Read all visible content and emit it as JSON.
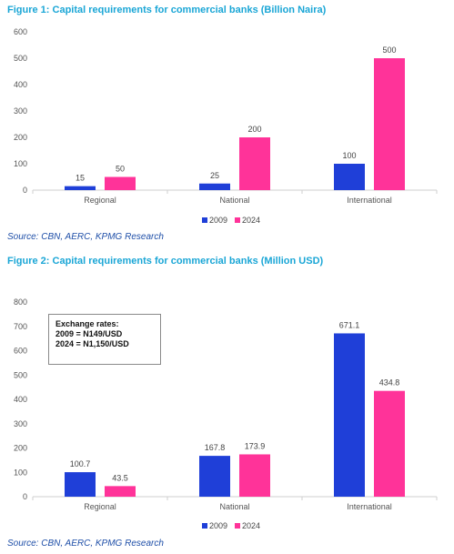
{
  "figure1": {
    "title": "Figure 1: Capital requirements for commercial banks (Billion Naira)",
    "source": "Source: CBN, AERC, KPMG Research"
  },
  "figure2": {
    "title": "Figure 2: Capital requirements for commercial banks (Million USD)",
    "source": "Source: CBN, AERC, KPMG Research",
    "note": {
      "line1": "Exchange rates:",
      "line2": "2009 = N149/USD",
      "line3": "2024 = N1,150/USD"
    }
  },
  "colors": {
    "series2009": "#1f3fd8",
    "series2024": "#ff3399"
  },
  "chart_data": [
    {
      "type": "bar",
      "title": "Figure 1: Capital requirements for commercial banks (Billion Naira)",
      "categories": [
        "Regional",
        "National",
        "International"
      ],
      "series": [
        {
          "name": "2009",
          "values": [
            15,
            25,
            100
          ],
          "labels": [
            "15",
            "25",
            "100"
          ]
        },
        {
          "name": "2024",
          "values": [
            50,
            200,
            500
          ],
          "labels": [
            "50",
            "200",
            "500"
          ]
        }
      ],
      "yticks": [
        0,
        100,
        200,
        300,
        400,
        500,
        600
      ],
      "ylim": [
        0,
        600
      ],
      "xlabel": "",
      "ylabel": "",
      "grid": false,
      "legend": "bottom-right"
    },
    {
      "type": "bar",
      "title": "Figure 2: Capital requirements for commercial banks (Million USD)",
      "categories": [
        "Regional",
        "National",
        "International"
      ],
      "series": [
        {
          "name": "2009",
          "values": [
            100.7,
            167.8,
            671.1
          ],
          "labels": [
            "100.7",
            "167.8",
            "671.1"
          ]
        },
        {
          "name": "2024",
          "values": [
            43.5,
            173.9,
            434.8
          ],
          "labels": [
            "43.5",
            "173.9",
            "434.8"
          ]
        }
      ],
      "yticks": [
        0,
        100,
        200,
        300,
        400,
        500,
        600,
        700,
        800
      ],
      "ylim": [
        0,
        800
      ],
      "xlabel": "",
      "ylabel": "",
      "grid": false,
      "legend": "bottom-right"
    }
  ]
}
